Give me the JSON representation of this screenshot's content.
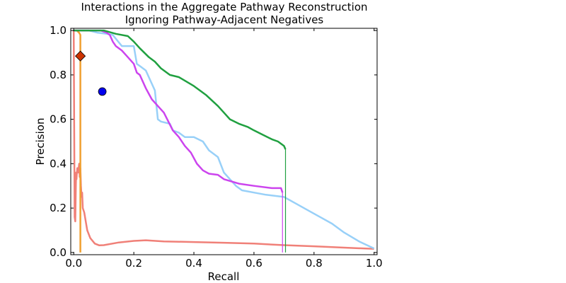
{
  "chart_data": {
    "type": "line",
    "title_lines": [
      "Interactions in the Aggregate Pathway Reconstruction",
      "Ignoring Pathway-Adjacent Negatives"
    ],
    "xlabel": "Recall",
    "ylabel": "Precision",
    "xlim": [
      -0.01,
      1.01
    ],
    "ylim": [
      -0.01,
      1.01
    ],
    "xticks": [
      "0.0",
      "0.2",
      "0.4",
      "0.6",
      "0.8",
      "1.0"
    ],
    "yticks": [
      "0.0",
      "0.2",
      "0.4",
      "0.6",
      "0.8",
      "1.0"
    ],
    "grid": false,
    "legend": "none",
    "series": [
      {
        "color": "#f08078",
        "x": [
          0.0,
          0.003,
          0.005,
          0.007,
          0.008,
          0.009,
          0.01,
          0.012,
          0.015,
          0.018,
          0.02,
          0.022,
          0.024,
          0.026,
          0.028,
          0.03,
          0.035,
          0.045,
          0.055,
          0.07,
          0.085,
          0.1,
          0.15,
          0.2,
          0.24,
          0.3,
          0.4,
          0.5,
          0.6,
          0.7,
          0.8,
          0.9,
          1.0
        ],
        "y": [
          1.0,
          0.16,
          0.14,
          0.3,
          0.36,
          0.33,
          0.35,
          0.38,
          0.36,
          0.4,
          0.34,
          0.38,
          0.3,
          0.25,
          0.27,
          0.2,
          0.18,
          0.1,
          0.065,
          0.04,
          0.032,
          0.033,
          0.045,
          0.052,
          0.055,
          0.05,
          0.047,
          0.044,
          0.04,
          0.033,
          0.028,
          0.022,
          0.016
        ],
        "drop_to_zero": false
      },
      {
        "color": "#f0a030",
        "x": [
          0.0,
          0.01,
          0.018,
          0.022,
          0.022
        ],
        "y": [
          1.0,
          1.0,
          0.99,
          0.98,
          0.0
        ],
        "drop_to_zero": false
      },
      {
        "color": "#98d0f8",
        "x": [
          0.0,
          0.05,
          0.08,
          0.11,
          0.13,
          0.16,
          0.17,
          0.2,
          0.21,
          0.22,
          0.24,
          0.26,
          0.27,
          0.28,
          0.29,
          0.32,
          0.33,
          0.35,
          0.37,
          0.4,
          0.43,
          0.45,
          0.48,
          0.5,
          0.52,
          0.54,
          0.56,
          0.6,
          0.64,
          0.7,
          0.74,
          0.78,
          0.82,
          0.86,
          0.9,
          0.95,
          1.0
        ],
        "y": [
          1.0,
          1.0,
          0.99,
          0.985,
          0.98,
          0.93,
          0.93,
          0.93,
          0.85,
          0.84,
          0.82,
          0.76,
          0.73,
          0.6,
          0.59,
          0.58,
          0.55,
          0.54,
          0.52,
          0.52,
          0.5,
          0.46,
          0.43,
          0.36,
          0.33,
          0.3,
          0.28,
          0.27,
          0.26,
          0.25,
          0.22,
          0.19,
          0.16,
          0.13,
          0.09,
          0.05,
          0.018
        ],
        "drop_to_zero": false
      },
      {
        "color": "#cc44ee",
        "x": [
          0.0,
          0.09,
          0.11,
          0.12,
          0.13,
          0.14,
          0.16,
          0.18,
          0.2,
          0.21,
          0.22,
          0.24,
          0.26,
          0.28,
          0.3,
          0.33,
          0.35,
          0.37,
          0.39,
          0.41,
          0.43,
          0.45,
          0.48,
          0.5,
          0.55,
          0.6,
          0.66,
          0.69,
          0.695
        ],
        "y": [
          1.0,
          1.0,
          0.99,
          0.98,
          0.95,
          0.93,
          0.91,
          0.88,
          0.85,
          0.81,
          0.8,
          0.74,
          0.69,
          0.66,
          0.63,
          0.55,
          0.52,
          0.48,
          0.45,
          0.4,
          0.37,
          0.355,
          0.35,
          0.33,
          0.31,
          0.3,
          0.29,
          0.29,
          0.27
        ],
        "drop_to_zero": true
      },
      {
        "color": "#20a040",
        "x": [
          0.0,
          0.1,
          0.14,
          0.18,
          0.2,
          0.22,
          0.25,
          0.27,
          0.29,
          0.32,
          0.35,
          0.4,
          0.44,
          0.48,
          0.5,
          0.52,
          0.55,
          0.58,
          0.6,
          0.63,
          0.66,
          0.68,
          0.7,
          0.705
        ],
        "y": [
          1.0,
          1.0,
          0.985,
          0.975,
          0.95,
          0.92,
          0.88,
          0.86,
          0.83,
          0.8,
          0.79,
          0.75,
          0.71,
          0.66,
          0.63,
          0.6,
          0.58,
          0.565,
          0.55,
          0.53,
          0.51,
          0.5,
          0.48,
          0.465
        ],
        "drop_to_zero": true
      }
    ],
    "markers": [
      {
        "shape": "diamond",
        "color": "#cc3300",
        "x": 0.022,
        "y": 0.885
      },
      {
        "shape": "circle",
        "color": "#0000ee",
        "x": 0.095,
        "y": 0.725
      }
    ]
  }
}
